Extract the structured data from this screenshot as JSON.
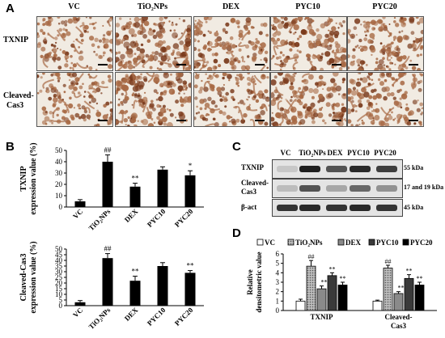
{
  "panel_a": {
    "letter": "A",
    "columns": [
      "VC",
      "TiO₂NPs",
      "DEX",
      "PYC10",
      "PYC20"
    ],
    "rows": [
      {
        "label_line1": "TXNIP",
        "label_line2": ""
      },
      {
        "label_line1": "Cleaved-",
        "label_line2": "Cas3"
      }
    ],
    "colors": {
      "tissue": "#a86a45",
      "background": "#f1ebe2",
      "stain_dark": "#7a3a1c"
    }
  },
  "panel_b": {
    "letter": "B",
    "charts": [
      {
        "type": "bar",
        "ylabel_line1": "TXNIP",
        "ylabel_line2": "expression value (%)",
        "categories": [
          "VC",
          "TiO₂NPs",
          "DEX",
          "PYC10",
          "PYC20"
        ],
        "values": [
          5,
          40,
          18,
          33,
          28
        ],
        "errors": [
          1.5,
          6,
          3,
          2.5,
          4
        ],
        "sig": [
          "",
          "##",
          "**",
          "",
          "*"
        ],
        "yticks": [
          "0",
          "10",
          "20",
          "30",
          "40",
          "50"
        ],
        "ylim": [
          0,
          50
        ],
        "bar_color": "#000000"
      },
      {
        "type": "bar",
        "ylabel_line1": "Cleaved-Cas3",
        "ylabel_line2": "expression value (%)",
        "categories": [
          "VC",
          "TiO₂NPs",
          "DEX",
          "PYC10",
          "PYC20"
        ],
        "values": [
          3,
          42,
          22,
          35,
          29
        ],
        "errors": [
          1.5,
          4,
          4,
          3,
          2
        ],
        "sig": [
          "",
          "##",
          "**",
          "",
          "**"
        ],
        "yticks": [
          "0",
          "5",
          "10",
          "15",
          "20",
          "25",
          "30",
          "35",
          "40",
          "45",
          "50"
        ],
        "ylim": [
          0,
          50
        ],
        "bar_color": "#000000"
      }
    ]
  },
  "panel_c": {
    "letter": "C",
    "lanes": [
      "VC",
      "TiO₂NPs",
      "DEX",
      "PYC10",
      "PYC20"
    ],
    "bands": [
      {
        "label_line1": "TXNIP",
        "label_line2": "",
        "size": "55 kDa",
        "intensity": [
          0.15,
          0.95,
          0.7,
          0.9,
          0.8
        ]
      },
      {
        "label_line1": "Cleaved-",
        "label_line2": "Cas3",
        "size": "17 and 19 kDa",
        "intensity": [
          0.2,
          0.7,
          0.3,
          0.6,
          0.4
        ]
      },
      {
        "label_line1": "β-act",
        "label_line2": "",
        "size": "45 kDa",
        "intensity": [
          0.85,
          0.9,
          0.85,
          0.9,
          0.85
        ]
      }
    ]
  },
  "panel_d": {
    "letter": "D",
    "chart_data": {
      "type": "bar",
      "ylabel_line1": "Relative",
      "ylabel_line2": "densitometric value",
      "groups": [
        {
          "label_line1": "TXNIP",
          "label_line2": ""
        },
        {
          "label_line1": "Cleaved-",
          "label_line2": "Cas3"
        }
      ],
      "series": [
        {
          "name": "VC",
          "values": [
            1.0,
            1.0
          ],
          "errors": [
            0.2,
            0.1
          ],
          "sig": [
            "",
            ""
          ],
          "fill": "#ffffff",
          "pattern": "none"
        },
        {
          "name": "TiO₂NPs",
          "values": [
            4.7,
            4.5
          ],
          "errors": [
            0.6,
            0.3
          ],
          "sig": [
            "##",
            "##"
          ],
          "fill": "#c8c8c8",
          "pattern": "dots"
        },
        {
          "name": "DEX",
          "values": [
            2.3,
            1.8
          ],
          "errors": [
            0.3,
            0.2
          ],
          "sig": [
            "**",
            "**"
          ],
          "fill": "#8a8a8a",
          "pattern": "none"
        },
        {
          "name": "PYC10",
          "values": [
            3.7,
            3.4
          ],
          "errors": [
            0.3,
            0.4
          ],
          "sig": [
            "**",
            "**"
          ],
          "fill": "#3a3a3a",
          "pattern": "none"
        },
        {
          "name": "PYC20",
          "values": [
            2.7,
            2.7
          ],
          "errors": [
            0.3,
            0.3
          ],
          "sig": [
            "**",
            "**"
          ],
          "fill": "#000000",
          "pattern": "none"
        }
      ],
      "yticks": [
        "0",
        "1",
        "2",
        "3",
        "4",
        "5",
        "6"
      ],
      "ylim": [
        0,
        6
      ],
      "legend_position": "top"
    }
  }
}
